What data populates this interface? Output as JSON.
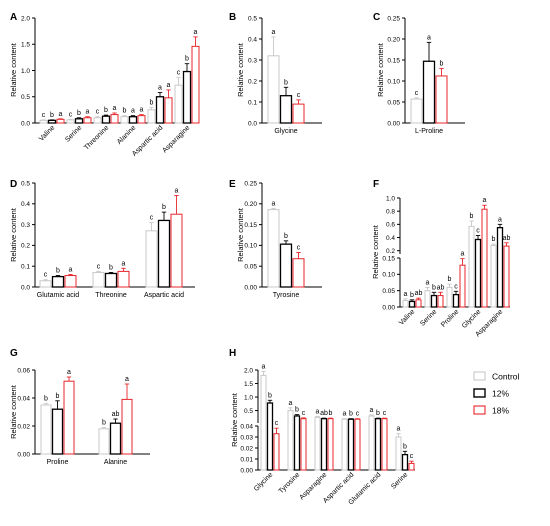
{
  "legend": [
    {
      "label": "Control",
      "color": "#c8c8c8"
    },
    {
      "label": "12%",
      "color": "#000000"
    },
    {
      "label": "18%",
      "color": "#e8262b"
    }
  ],
  "chart_data": [
    {
      "panel": "A",
      "type": "bar",
      "ylabel": "Relative content",
      "ylim": [
        0,
        2.0
      ],
      "yticks": [
        "0.0",
        "0.5",
        "1.0",
        "1.5",
        "2.0"
      ],
      "ytickvals": [
        0,
        0.5,
        1,
        1.5,
        2
      ],
      "categories": [
        "Valine",
        "Serine",
        "Threonine",
        "Alanine",
        "Aspartic acid",
        "Asparagine"
      ],
      "values": [
        [
          0.05,
          0.05,
          0.07
        ],
        [
          0.06,
          0.08,
          0.1
        ],
        [
          0.1,
          0.13,
          0.16
        ],
        [
          0.12,
          0.12,
          0.14
        ],
        [
          0.25,
          0.5,
          0.48
        ],
        [
          0.72,
          0.98,
          1.46
        ]
      ],
      "errors": [
        [
          0.01,
          0.01,
          0.01
        ],
        [
          0.01,
          0.02,
          0.02
        ],
        [
          0.02,
          0.02,
          0.03
        ],
        [
          0.02,
          0.02,
          0.02
        ],
        [
          0.05,
          0.08,
          0.15
        ],
        [
          0.15,
          0.15,
          0.18
        ]
      ],
      "letters": [
        [
          "c",
          "b",
          "a"
        ],
        [
          "c",
          "b",
          "a"
        ],
        [
          "c",
          "b",
          "a"
        ],
        [
          "b",
          "a",
          "a"
        ],
        [
          "b",
          "a",
          "a"
        ],
        [
          "c",
          "b",
          "a"
        ]
      ]
    },
    {
      "panel": "B",
      "type": "bar",
      "ylabel": "Relative content",
      "ylim": [
        0,
        0.5
      ],
      "yticks": [
        "0.0",
        "0.1",
        "0.2",
        "0.3",
        "0.4",
        "0.5"
      ],
      "ytickvals": [
        0,
        0.1,
        0.2,
        0.3,
        0.4,
        0.5
      ],
      "categories": [
        "Glycine"
      ],
      "values": [
        [
          0.32,
          0.13,
          0.09
        ]
      ],
      "errors": [
        [
          0.09,
          0.04,
          0.02
        ]
      ],
      "letters": [
        [
          "a",
          "b",
          "c"
        ]
      ]
    },
    {
      "panel": "C",
      "type": "bar",
      "ylabel": "Relative content",
      "ylim": [
        0,
        0.25
      ],
      "yticks": [
        "0.00",
        "0.05",
        "0.10",
        "0.15",
        "0.20",
        "0.25"
      ],
      "ytickvals": [
        0,
        0.05,
        0.1,
        0.15,
        0.2,
        0.25
      ],
      "categories": [
        "L-Proline"
      ],
      "values": [
        [
          0.057,
          0.147,
          0.112
        ]
      ],
      "errors": [
        [
          0.003,
          0.045,
          0.018
        ]
      ],
      "letters": [
        [
          "c",
          "a",
          "b"
        ]
      ]
    },
    {
      "panel": "D",
      "type": "bar",
      "ylabel": "Relative content",
      "ylim": [
        0,
        0.5
      ],
      "yticks": [
        "0.0",
        "0.1",
        "0.2",
        "0.3",
        "0.4",
        "0.5"
      ],
      "ytickvals": [
        0,
        0.1,
        0.2,
        0.3,
        0.4,
        0.5
      ],
      "categories": [
        "Glutamic acid",
        "Threonine",
        "Aspartic acid"
      ],
      "values": [
        [
          0.03,
          0.05,
          0.055
        ],
        [
          0.07,
          0.065,
          0.075
        ],
        [
          0.27,
          0.32,
          0.35
        ]
      ],
      "errors": [
        [
          0.005,
          0.005,
          0.005
        ],
        [
          0.005,
          0.005,
          0.015
        ],
        [
          0.04,
          0.04,
          0.09
        ]
      ],
      "letters": [
        [
          "c",
          "b",
          "a"
        ],
        [
          "c",
          "b",
          "a"
        ],
        [
          "c",
          "b",
          "a"
        ]
      ]
    },
    {
      "panel": "E",
      "type": "bar",
      "ylabel": "Relative content",
      "ylim": [
        0,
        0.25
      ],
      "yticks": [
        "0.00",
        "0.05",
        "0.10",
        "0.15",
        "0.20",
        "0.25"
      ],
      "ytickvals": [
        0,
        0.05,
        0.1,
        0.15,
        0.2,
        0.25
      ],
      "categories": [
        "Tyrosine"
      ],
      "values": [
        [
          0.186,
          0.103,
          0.068
        ]
      ],
      "errors": [
        [
          0.003,
          0.008,
          0.015
        ]
      ],
      "letters": [
        [
          "a",
          "b",
          "c"
        ]
      ]
    },
    {
      "panel": "F",
      "type": "bar",
      "ylabel": "Relative content",
      "broken_axis": true,
      "yticks": [
        "0.00",
        "0.05",
        "0.10",
        "0.15",
        "0.2",
        "0.4",
        "0.6",
        "0.8",
        "1.0"
      ],
      "segments": [
        {
          "range": [
            0,
            0.15
          ],
          "ticks": [
            0,
            0.05,
            0.1,
            0.15
          ]
        },
        {
          "range": [
            0.15,
            1.0
          ],
          "ticks": [
            0.2,
            0.4,
            0.6,
            0.8,
            1.0
          ]
        }
      ],
      "categories": [
        "Valine",
        "Serine",
        "Proline",
        "Glycine",
        "Asparagine"
      ],
      "values": [
        [
          0.02,
          0.017,
          0.022
        ],
        [
          0.05,
          0.035,
          0.035
        ],
        [
          0.06,
          0.038,
          0.128
        ],
        [
          0.57,
          0.37,
          0.83
        ],
        [
          0.28,
          0.55,
          0.27
        ]
      ],
      "errors": [
        [
          0.005,
          0.005,
          0.005
        ],
        [
          0.01,
          0.01,
          0.01
        ],
        [
          0.01,
          0.01,
          0.02
        ],
        [
          0.08,
          0.06,
          0.06
        ],
        [
          0.02,
          0.05,
          0.05
        ]
      ],
      "letters": [
        [
          "a",
          "b",
          "ab"
        ],
        [
          "a",
          "b",
          "ab"
        ],
        [
          "b",
          "c",
          "a"
        ],
        [
          "b",
          "c",
          "a"
        ],
        [
          "b",
          "a",
          "ab"
        ]
      ]
    },
    {
      "panel": "G",
      "type": "bar",
      "ylabel": "Relative content",
      "ylim": [
        0,
        0.06
      ],
      "yticks": [
        "0.00",
        "0.02",
        "0.04",
        "0.06"
      ],
      "ytickvals": [
        0,
        0.02,
        0.04,
        0.06
      ],
      "categories": [
        "Proline",
        "Alanine"
      ],
      "values": [
        [
          0.035,
          0.032,
          0.052
        ],
        [
          0.018,
          0.022,
          0.039
        ]
      ],
      "errors": [
        [
          0.001,
          0.006,
          0.003
        ],
        [
          0.001,
          0.003,
          0.011
        ]
      ],
      "letters": [
        [
          "b",
          "b",
          "a"
        ],
        [
          "b",
          "ab",
          "a"
        ]
      ]
    },
    {
      "panel": "H",
      "type": "bar",
      "ylabel": "Relative content",
      "broken_axis": true,
      "yticks": [
        "0.00",
        "0.01",
        "0.02",
        "0.03",
        "0.04",
        "0.5",
        "1.0",
        "1.5",
        "2.0"
      ],
      "segments": [
        {
          "range": [
            0,
            0.04
          ],
          "ticks": [
            0,
            0.01,
            0.02,
            0.03,
            0.04
          ]
        },
        {
          "range": [
            0.04,
            2.0
          ],
          "ticks": [
            0.5,
            1.0,
            1.5,
            2.0
          ]
        }
      ],
      "categories": [
        "Glycine",
        "Tyrosine",
        "Asparagine",
        "Aspartic acid",
        "Glutamic acid",
        "Serine"
      ],
      "values": [
        [
          1.8,
          0.78,
          0.033
        ],
        [
          0.5,
          0.3,
          0.2
        ],
        [
          0.25,
          0.2,
          0.2
        ],
        [
          0.18,
          0.18,
          0.18
        ],
        [
          0.3,
          0.2,
          0.2
        ],
        [
          0.03,
          0.014,
          0.006
        ]
      ],
      "errors": [
        [
          0.15,
          0.1,
          0.005
        ],
        [
          0.1,
          0.05,
          0.03
        ],
        [
          0.03,
          0.02,
          0.02
        ],
        [
          0.02,
          0.02,
          0.02
        ],
        [
          0.04,
          0.02,
          0.02
        ],
        [
          0.003,
          0.003,
          0.002
        ]
      ],
      "letters": [
        [
          "a",
          "b",
          "c"
        ],
        [
          "a",
          "b",
          "c"
        ],
        [
          "a",
          "ab",
          "b"
        ],
        [
          "a",
          "b",
          "c"
        ],
        [
          "a",
          "b",
          "c"
        ],
        [
          "a",
          "b",
          "c"
        ]
      ]
    }
  ]
}
